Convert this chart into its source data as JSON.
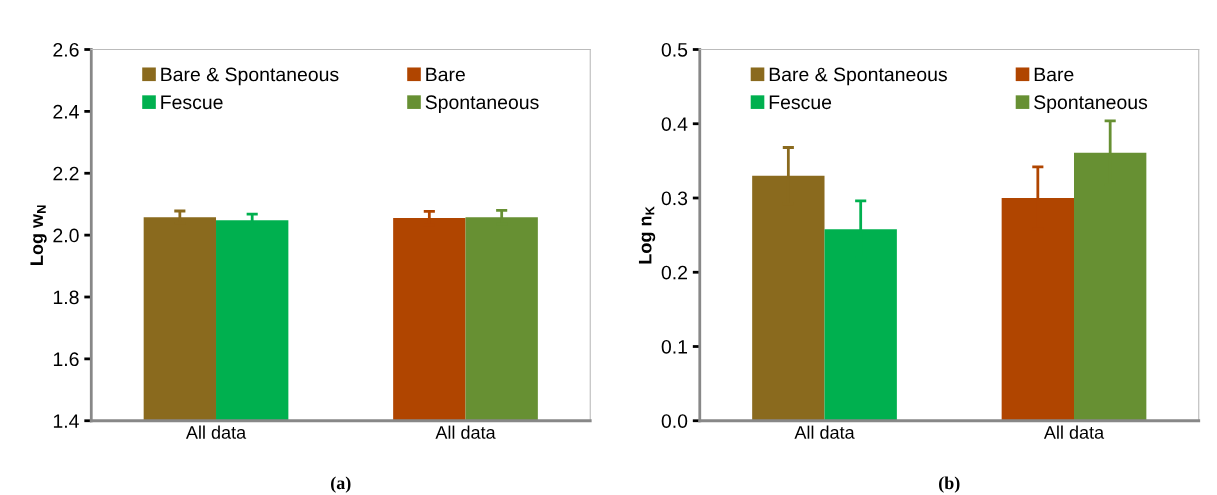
{
  "chart_data": [
    {
      "type": "bar",
      "ylabel": "Log w$_{N}$",
      "categories": [
        "All data",
        "All data"
      ],
      "ylim": [
        1.4,
        2.6
      ],
      "yticks": [
        1.4,
        1.6,
        1.8,
        {
          "value": 2.0,
          "label": "2.0"
        },
        2.2,
        2.4,
        2.6
      ],
      "grid": false,
      "legend": "top",
      "annotations": [
        "(a)"
      ],
      "series": [
        {
          "name": "Bare & Spontaneous",
          "color": "#8a6a1e",
          "values": [
            2.058,
            null
          ],
          "errors": [
            0.02,
            null
          ]
        },
        {
          "name": "Fescue",
          "color": "#00b04f",
          "values": [
            2.048,
            null
          ],
          "errors": [
            0.02,
            null
          ]
        },
        {
          "name": "Bare",
          "color": "#b04500",
          "values": [
            null,
            2.055
          ],
          "errors": [
            null,
            0.022
          ]
        },
        {
          "name": "Spontaneous",
          "color": "#679033",
          "values": [
            null,
            2.058
          ],
          "errors": [
            null,
            0.022
          ]
        }
      ]
    },
    {
      "type": "bar",
      "ylabel": "Log n$_{K}$",
      "categories": [
        "All data",
        "All data"
      ],
      "ylim": [
        0.0,
        0.5
      ],
      "yticks": [
        {
          "value": 0.0,
          "label": "0.0"
        },
        0.1,
        0.2,
        0.3,
        0.4,
        0.5
      ],
      "grid": false,
      "legend": "top",
      "annotations": [
        "(b)"
      ],
      "series": [
        {
          "name": "Bare & Spontaneous",
          "color": "#8a6a1e",
          "values": [
            0.33,
            null
          ],
          "errors": [
            0.038,
            null
          ]
        },
        {
          "name": "Fescue",
          "color": "#00b04f",
          "values": [
            0.258,
            null
          ],
          "errors": [
            0.038,
            null
          ]
        },
        {
          "name": "Bare",
          "color": "#b04500",
          "values": [
            null,
            0.3
          ],
          "errors": [
            null,
            0.042
          ]
        },
        {
          "name": "Spontaneous",
          "color": "#679033",
          "values": [
            null,
            0.361
          ],
          "errors": [
            null,
            0.043
          ]
        }
      ]
    }
  ]
}
